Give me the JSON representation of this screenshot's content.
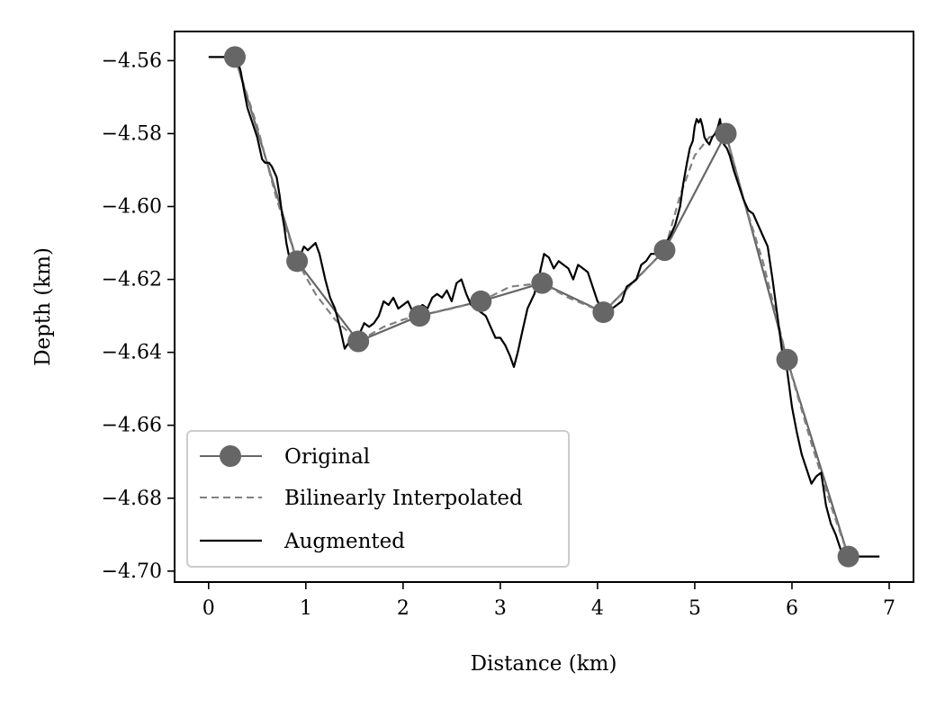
{
  "chart_data": {
    "type": "line",
    "title": "",
    "xlabel": "Distance (km)",
    "ylabel": "Depth (km)",
    "xlim": [
      -0.35,
      7.25
    ],
    "ylim": [
      -4.703,
      -4.552
    ],
    "xticks": [
      0,
      1,
      2,
      3,
      4,
      5,
      6,
      7
    ],
    "xtick_labels": [
      "0",
      "1",
      "2",
      "3",
      "4",
      "5",
      "6",
      "7"
    ],
    "yticks": [
      -4.56,
      -4.58,
      -4.6,
      -4.62,
      -4.64,
      -4.66,
      -4.68,
      -4.7
    ],
    "ytick_labels": [
      "−4.56",
      "−4.58",
      "−4.60",
      "−4.62",
      "−4.64",
      "−4.66",
      "−4.68",
      "−4.70"
    ],
    "grid": false,
    "legend_position": "lower-left",
    "series": [
      {
        "name": "Original",
        "style": "solid-markers",
        "color": "#666666",
        "x": [
          0.27,
          0.91,
          1.54,
          2.17,
          2.8,
          3.43,
          4.06,
          4.69,
          5.32,
          5.95,
          6.58
        ],
        "y": [
          -4.559,
          -4.615,
          -4.637,
          -4.63,
          -4.626,
          -4.621,
          -4.629,
          -4.612,
          -4.58,
          -4.642,
          -4.696
        ]
      },
      {
        "name": "Bilinearly Interpolated",
        "style": "dashed",
        "color": "#808080",
        "x": [
          0.27,
          0.5,
          0.7,
          0.91,
          1.1,
          1.3,
          1.54,
          1.8,
          2.0,
          2.17,
          2.5,
          2.8,
          3.1,
          3.43,
          3.7,
          4.06,
          4.4,
          4.69,
          4.85,
          5.0,
          5.15,
          5.32,
          5.5,
          5.7,
          5.95,
          6.2,
          6.4,
          6.58
        ],
        "y": [
          -4.559,
          -4.578,
          -4.598,
          -4.615,
          -4.624,
          -4.631,
          -4.637,
          -4.633,
          -4.631,
          -4.63,
          -4.628,
          -4.626,
          -4.622,
          -4.621,
          -4.625,
          -4.629,
          -4.62,
          -4.612,
          -4.597,
          -4.586,
          -4.581,
          -4.58,
          -4.598,
          -4.615,
          -4.642,
          -4.665,
          -4.682,
          -4.696
        ]
      },
      {
        "name": "Augmented",
        "style": "solid",
        "color": "#000000",
        "x": [
          0.0,
          0.1,
          0.2,
          0.29,
          0.33,
          0.37,
          0.4,
          0.45,
          0.5,
          0.55,
          0.58,
          0.62,
          0.65,
          0.7,
          0.73,
          0.75,
          0.78,
          0.8,
          0.83,
          0.85,
          0.88,
          0.91,
          0.95,
          0.98,
          1.02,
          1.06,
          1.1,
          1.14,
          1.2,
          1.25,
          1.3,
          1.35,
          1.4,
          1.45,
          1.5,
          1.55,
          1.6,
          1.65,
          1.7,
          1.75,
          1.8,
          1.85,
          1.9,
          1.95,
          2.0,
          2.05,
          2.1,
          2.15,
          2.2,
          2.25,
          2.3,
          2.35,
          2.4,
          2.45,
          2.5,
          2.55,
          2.6,
          2.65,
          2.7,
          2.75,
          2.8,
          2.85,
          2.9,
          2.95,
          3.0,
          3.05,
          3.1,
          3.14,
          3.18,
          3.22,
          3.28,
          3.35,
          3.4,
          3.45,
          3.5,
          3.55,
          3.6,
          3.65,
          3.7,
          3.75,
          3.8,
          3.85,
          3.9,
          3.95,
          4.0,
          4.05,
          4.1,
          4.15,
          4.2,
          4.25,
          4.3,
          4.35,
          4.4,
          4.45,
          4.5,
          4.55,
          4.6,
          4.65,
          4.7,
          4.75,
          4.8,
          4.85,
          4.88,
          4.92,
          4.95,
          4.98,
          5.0,
          5.02,
          5.04,
          5.06,
          5.08,
          5.1,
          5.12,
          5.15,
          5.18,
          5.21,
          5.24,
          5.26,
          5.28,
          5.3,
          5.33,
          5.36,
          5.4,
          5.45,
          5.5,
          5.55,
          5.6,
          5.65,
          5.7,
          5.75,
          5.8,
          5.85,
          5.9,
          5.95,
          6.0,
          6.05,
          6.1,
          6.15,
          6.2,
          6.25,
          6.3,
          6.35,
          6.4,
          6.45,
          6.5,
          6.55,
          6.58,
          6.7,
          6.8,
          6.9
        ],
        "y": [
          -4.559,
          -4.559,
          -4.559,
          -4.559,
          -4.563,
          -4.569,
          -4.573,
          -4.577,
          -4.581,
          -4.587,
          -4.588,
          -4.588,
          -4.589,
          -4.592,
          -4.597,
          -4.601,
          -4.606,
          -4.61,
          -4.614,
          -4.613,
          -4.614,
          -4.615,
          -4.613,
          -4.611,
          -4.612,
          -4.611,
          -4.61,
          -4.613,
          -4.62,
          -4.625,
          -4.628,
          -4.633,
          -4.639,
          -4.637,
          -4.638,
          -4.635,
          -4.632,
          -4.633,
          -4.632,
          -4.63,
          -4.626,
          -4.627,
          -4.625,
          -4.628,
          -4.627,
          -4.626,
          -4.629,
          -4.628,
          -4.627,
          -4.628,
          -4.625,
          -4.624,
          -4.625,
          -4.623,
          -4.626,
          -4.621,
          -4.62,
          -4.624,
          -4.627,
          -4.628,
          -4.629,
          -4.63,
          -4.633,
          -4.636,
          -4.636,
          -4.638,
          -4.641,
          -4.644,
          -4.64,
          -4.635,
          -4.628,
          -4.624,
          -4.619,
          -4.613,
          -4.614,
          -4.617,
          -4.615,
          -4.616,
          -4.617,
          -4.62,
          -4.616,
          -4.617,
          -4.618,
          -4.622,
          -4.626,
          -4.628,
          -4.63,
          -4.628,
          -4.627,
          -4.626,
          -4.622,
          -4.621,
          -4.62,
          -4.616,
          -4.615,
          -4.613,
          -4.613,
          -4.612,
          -4.61,
          -4.608,
          -4.605,
          -4.6,
          -4.594,
          -4.588,
          -4.584,
          -4.582,
          -4.578,
          -4.576,
          -4.577,
          -4.576,
          -4.578,
          -4.581,
          -4.582,
          -4.583,
          -4.581,
          -4.58,
          -4.578,
          -4.576,
          -4.58,
          -4.583,
          -4.584,
          -4.586,
          -4.59,
          -4.594,
          -4.598,
          -4.601,
          -4.602,
          -4.605,
          -4.608,
          -4.611,
          -4.62,
          -4.63,
          -4.64,
          -4.645,
          -4.655,
          -4.662,
          -4.668,
          -4.672,
          -4.676,
          -4.674,
          -4.673,
          -4.682,
          -4.687,
          -4.69,
          -4.694,
          -4.697,
          -4.696,
          -4.696,
          -4.696,
          -4.696
        ]
      }
    ]
  }
}
